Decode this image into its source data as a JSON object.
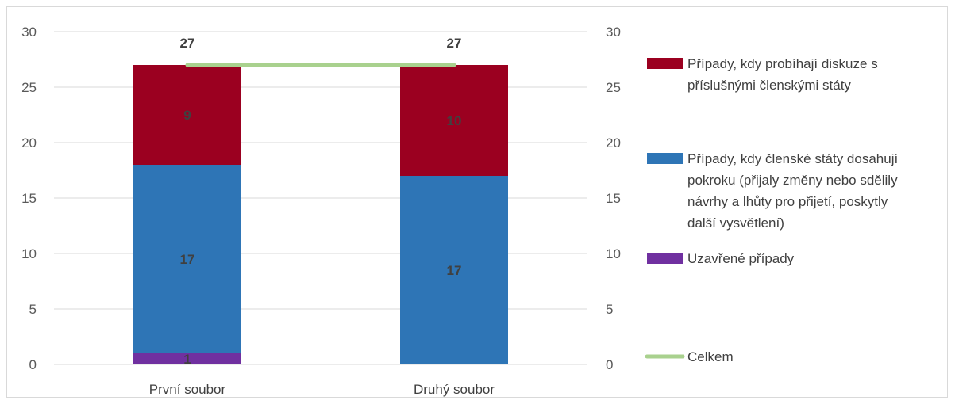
{
  "chart_data": {
    "type": "bar",
    "stacked": true,
    "categories": [
      "První soubor",
      "Druhý soubor"
    ],
    "series": [
      {
        "name": "Uzavřené případy",
        "values": [
          1,
          0
        ],
        "color": "#7030A0"
      },
      {
        "name": "Případy, kdy členské státy dosahují pokroku (přijaly změny nebo sdělily návrhy a lhůty pro přijetí, poskytly další vysvětlení)",
        "values": [
          17,
          17
        ],
        "color": "#2E75B6"
      },
      {
        "name": "Případy, kdy probíhají diskuze s příslušnými členskými státy",
        "values": [
          9,
          10
        ],
        "color": "#9B0020"
      }
    ],
    "line_series": {
      "name": "Celkem",
      "values": [
        27,
        27
      ],
      "color": "#A9D18E"
    },
    "data_labels": {
      "segments": [
        [
          "1",
          "17",
          "9"
        ],
        [
          "",
          "17",
          "10"
        ]
      ],
      "totals": [
        "27",
        "27"
      ]
    },
    "ylim": [
      0,
      30
    ],
    "yticks": [
      "0",
      "5",
      "10",
      "15",
      "20",
      "25",
      "30"
    ],
    "secondary_yticks": [
      "0",
      "5",
      "10",
      "15",
      "20",
      "25",
      "30"
    ],
    "grid": true,
    "legend_position": "right"
  }
}
